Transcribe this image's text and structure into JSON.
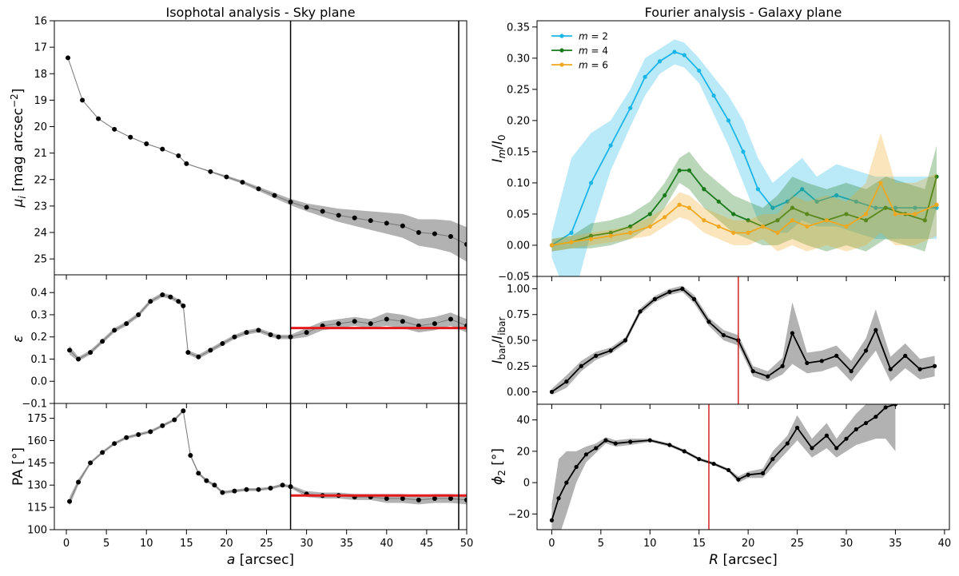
{
  "chart_data": [
    {
      "type": "scatter",
      "title": "Isophotal analysis - Sky plane",
      "ylabel": "μ_i [mag arcsec^−2]",
      "xlabel": "",
      "ylim": [
        25.6,
        16
      ],
      "xlim": [
        -1.5,
        50
      ],
      "yticks": [
        16,
        17,
        18,
        19,
        20,
        21,
        22,
        23,
        24,
        25
      ],
      "vlines": [
        28,
        49
      ],
      "x": [
        0.2,
        2,
        4,
        6,
        8,
        10,
        12,
        14,
        15,
        18,
        20,
        22,
        24,
        26,
        28,
        30,
        32,
        34,
        36,
        38,
        40,
        42,
        44,
        46,
        48,
        50
      ],
      "y": [
        17.4,
        19.0,
        19.7,
        20.1,
        20.4,
        20.65,
        20.85,
        21.1,
        21.4,
        21.7,
        21.9,
        22.1,
        22.35,
        22.6,
        22.85,
        23.05,
        23.2,
        23.35,
        23.45,
        23.55,
        23.65,
        23.75,
        24.0,
        24.05,
        24.15,
        24.45
      ],
      "err": [
        0,
        0,
        0,
        0,
        0,
        0,
        0,
        0,
        0,
        0.03,
        0.05,
        0.06,
        0.08,
        0.1,
        0.12,
        0.15,
        0.2,
        0.25,
        0.3,
        0.35,
        0.4,
        0.45,
        0.5,
        0.55,
        0.6,
        0.65
      ]
    },
    {
      "type": "scatter",
      "ylabel": "ε",
      "ylim": [
        -0.1,
        0.48
      ],
      "xlim": [
        -1.5,
        50
      ],
      "yticks": [
        -0.1,
        0.0,
        0.1,
        0.2,
        0.3,
        0.4
      ],
      "vlines": [
        28,
        49
      ],
      "hline": {
        "value": 0.24,
        "from": 28,
        "to": 50,
        "color": "#e41a1c"
      },
      "x": [
        0.4,
        1.5,
        3,
        4.5,
        6,
        7.5,
        9,
        10.5,
        12,
        13,
        14,
        14.6,
        15.2,
        16.5,
        18,
        19.5,
        21,
        22.5,
        24,
        25.5,
        26.5,
        28,
        30,
        32,
        34,
        36,
        38,
        40,
        42,
        44,
        46,
        48,
        50
      ],
      "y": [
        0.14,
        0.1,
        0.13,
        0.18,
        0.23,
        0.26,
        0.3,
        0.36,
        0.39,
        0.38,
        0.36,
        0.34,
        0.13,
        0.11,
        0.14,
        0.17,
        0.2,
        0.22,
        0.23,
        0.21,
        0.2,
        0.2,
        0.22,
        0.25,
        0.26,
        0.27,
        0.26,
        0.28,
        0.27,
        0.25,
        0.26,
        0.28,
        0.25
      ],
      "err": [
        0.02,
        0.01,
        0.01,
        0.01,
        0.01,
        0.01,
        0.01,
        0.01,
        0.01,
        0.01,
        0.01,
        0.01,
        0.01,
        0.01,
        0.01,
        0.01,
        0.01,
        0.01,
        0.01,
        0.01,
        0.01,
        0.01,
        0.02,
        0.02,
        0.02,
        0.02,
        0.02,
        0.03,
        0.03,
        0.03,
        0.03,
        0.03,
        0.03
      ]
    },
    {
      "type": "scatter",
      "ylabel": "PA [°]",
      "xlabel": "a [arcsec]",
      "ylim": [
        100,
        185
      ],
      "xlim": [
        -1.5,
        50
      ],
      "yticks": [
        100,
        115,
        130,
        145,
        160,
        175
      ],
      "xticks": [
        0,
        5,
        10,
        15,
        20,
        25,
        30,
        35,
        40,
        45,
        50
      ],
      "vlines": [
        28,
        49
      ],
      "hline": {
        "value": 123,
        "from": 28,
        "to": 50,
        "color": "#e41a1c"
      },
      "x": [
        0.4,
        1.5,
        3,
        4.5,
        6,
        7.5,
        9,
        10.5,
        12,
        13.5,
        14.6,
        15.5,
        16.5,
        17.5,
        18.5,
        19.5,
        21,
        22.5,
        24,
        25.5,
        27,
        28,
        30,
        32,
        34,
        36,
        38,
        40,
        42,
        44,
        46,
        48,
        50
      ],
      "y": [
        119,
        132,
        145,
        152,
        158,
        162,
        164,
        166,
        170,
        174,
        180,
        150,
        138,
        133,
        130,
        125,
        126,
        127,
        127,
        128,
        130,
        129,
        124,
        123,
        123,
        122,
        122,
        121,
        121,
        120,
        121,
        121,
        120
      ],
      "err": [
        3,
        2,
        1,
        1,
        1,
        1,
        1,
        1,
        1,
        1,
        1,
        1,
        1,
        1,
        1,
        1,
        1,
        1,
        1,
        1,
        1,
        1,
        2,
        2,
        2,
        2,
        2,
        3,
        3,
        3,
        3,
        3,
        3
      ]
    },
    {
      "type": "line",
      "title": "Fourier analysis - Galaxy plane",
      "ylabel": "I_m/I_0",
      "xlabel": "",
      "ylim": [
        -0.05,
        0.36
      ],
      "xlim": [
        -1.5,
        40.5
      ],
      "yticks": [
        -0.05,
        0.0,
        0.05,
        0.1,
        0.15,
        0.2,
        0.25,
        0.3,
        0.35
      ],
      "legend": "top-left",
      "series": [
        {
          "name": "m = 2",
          "color": "#1bb6e8",
          "x": [
            0,
            2,
            4,
            6,
            8,
            9.5,
            11,
            12.5,
            13.5,
            15,
            16.5,
            18,
            19.5,
            21,
            22.5,
            24,
            25.5,
            27,
            29,
            31,
            33,
            35,
            37,
            39.2
          ],
          "y": [
            0.0,
            0.02,
            0.1,
            0.16,
            0.22,
            0.27,
            0.295,
            0.31,
            0.305,
            0.28,
            0.24,
            0.2,
            0.15,
            0.09,
            0.06,
            0.07,
            0.09,
            0.07,
            0.08,
            0.07,
            0.06,
            0.06,
            0.06,
            0.06
          ],
          "err": [
            0.02,
            0.12,
            0.08,
            0.04,
            0.03,
            0.03,
            0.02,
            0.02,
            0.02,
            0.02,
            0.03,
            0.04,
            0.05,
            0.05,
            0.04,
            0.05,
            0.05,
            0.04,
            0.05,
            0.05,
            0.05,
            0.05,
            0.05,
            0.05
          ]
        },
        {
          "name": "m = 4",
          "color": "#1a7a1a",
          "x": [
            0,
            2,
            4,
            6,
            8,
            10,
            11.5,
            13,
            14,
            15.5,
            17,
            18.5,
            20,
            21.5,
            23,
            24.5,
            26,
            28,
            30,
            32,
            34,
            36,
            38,
            39.2
          ],
          "y": [
            0.0,
            0.005,
            0.015,
            0.02,
            0.03,
            0.05,
            0.08,
            0.12,
            0.12,
            0.09,
            0.07,
            0.05,
            0.04,
            0.03,
            0.04,
            0.06,
            0.05,
            0.04,
            0.05,
            0.04,
            0.06,
            0.05,
            0.04,
            0.11
          ],
          "err": [
            0.01,
            0.01,
            0.02,
            0.02,
            0.02,
            0.02,
            0.02,
            0.02,
            0.03,
            0.03,
            0.03,
            0.03,
            0.03,
            0.03,
            0.04,
            0.05,
            0.05,
            0.05,
            0.05,
            0.05,
            0.05,
            0.05,
            0.05,
            0.05
          ]
        },
        {
          "name": "m = 6",
          "color": "#f0a820",
          "x": [
            0,
            2,
            4,
            6,
            8,
            10,
            11.5,
            13,
            14,
            15.5,
            17,
            18.5,
            20,
            21.5,
            23,
            24.5,
            26,
            28,
            30,
            32,
            33.5,
            35,
            37,
            39.2
          ],
          "y": [
            0.0,
            0.005,
            0.01,
            0.015,
            0.02,
            0.03,
            0.045,
            0.065,
            0.06,
            0.04,
            0.03,
            0.02,
            0.02,
            0.03,
            0.02,
            0.04,
            0.03,
            0.04,
            0.03,
            0.05,
            0.1,
            0.05,
            0.05,
            0.065
          ],
          "err": [
            0.01,
            0.01,
            0.01,
            0.01,
            0.01,
            0.015,
            0.015,
            0.02,
            0.02,
            0.02,
            0.02,
            0.02,
            0.02,
            0.02,
            0.03,
            0.04,
            0.04,
            0.04,
            0.04,
            0.05,
            0.08,
            0.05,
            0.05,
            0.05
          ]
        }
      ]
    },
    {
      "type": "line",
      "ylabel": "I_bar/I_ibar",
      "ylim": [
        -0.12,
        1.12
      ],
      "xlim": [
        -1.5,
        40.5
      ],
      "yticks": [
        0.0,
        0.25,
        0.5,
        0.75,
        1.0
      ],
      "vlines": [
        {
          "value": 19,
          "color": "#cc0000"
        }
      ],
      "x": [
        0,
        1.5,
        3,
        4.5,
        6,
        7.5,
        9,
        10.5,
        12,
        13.3,
        14.5,
        16,
        17.5,
        19,
        20.5,
        22,
        23.5,
        24.5,
        26,
        27.5,
        29,
        30.5,
        32,
        33,
        34.5,
        36,
        37.5,
        39
      ],
      "y": [
        0.0,
        0.1,
        0.25,
        0.35,
        0.4,
        0.5,
        0.78,
        0.9,
        0.97,
        1.0,
        0.9,
        0.68,
        0.55,
        0.5,
        0.2,
        0.15,
        0.25,
        0.57,
        0.28,
        0.3,
        0.35,
        0.2,
        0.4,
        0.6,
        0.22,
        0.35,
        0.22,
        0.25
      ],
      "err": [
        0.03,
        0.06,
        0.05,
        0.04,
        0.03,
        0.03,
        0.03,
        0.03,
        0.03,
        0.03,
        0.04,
        0.04,
        0.05,
        0.05,
        0.05,
        0.05,
        0.08,
        0.3,
        0.1,
        0.1,
        0.1,
        0.1,
        0.12,
        0.2,
        0.12,
        0.12,
        0.1,
        0.1
      ]
    },
    {
      "type": "line",
      "ylabel": "ϕ_2 [°]",
      "xlabel": "R [arcsec]",
      "ylim": [
        -30,
        50
      ],
      "xlim": [
        -1.5,
        40.5
      ],
      "yticks": [
        -20,
        0,
        20,
        40
      ],
      "xticks": [
        0,
        5,
        10,
        15,
        20,
        25,
        30,
        35,
        40
      ],
      "vlines": [
        {
          "value": 16,
          "color": "#cc0000"
        }
      ],
      "x": [
        0,
        0.7,
        1.5,
        2.5,
        3.5,
        4.5,
        5.5,
        6.5,
        8,
        10,
        12,
        13.5,
        15,
        16.5,
        18,
        19,
        20,
        21.5,
        22.5,
        24,
        25,
        26.5,
        28,
        29,
        30,
        31,
        32,
        33,
        34,
        35
      ],
      "y": [
        -24,
        -10,
        0,
        10,
        18,
        22,
        27,
        25,
        26,
        27,
        24,
        20,
        15,
        12,
        8,
        2,
        5,
        6,
        15,
        25,
        35,
        22,
        30,
        22,
        28,
        34,
        38,
        42,
        48,
        50
      ],
      "err": [
        10,
        25,
        20,
        10,
        5,
        3,
        2,
        2,
        2,
        1,
        1,
        1,
        1,
        1,
        1,
        2,
        2,
        3,
        5,
        5,
        8,
        6,
        8,
        6,
        8,
        10,
        12,
        14,
        20,
        30
      ]
    }
  ]
}
